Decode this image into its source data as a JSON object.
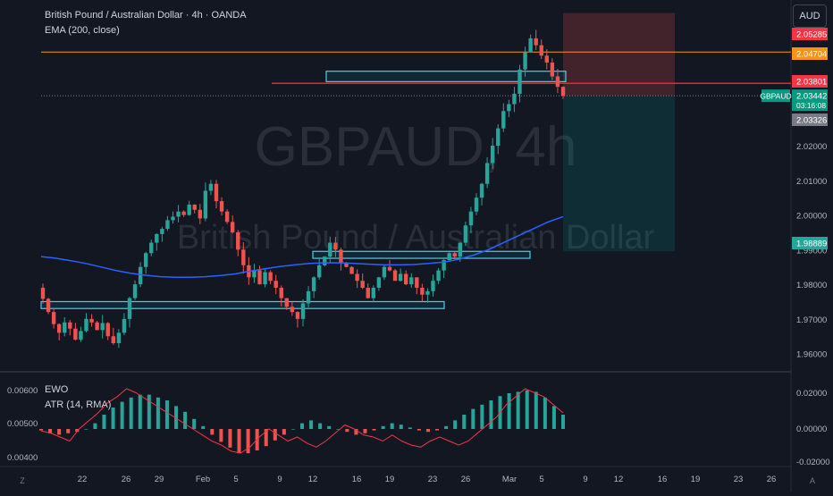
{
  "header": {
    "title": "British Pound / Australian Dollar · 4h · OANDA",
    "indicator": "EMA (200, close)"
  },
  "watermark": {
    "symbol": "GBPAUD, 4h",
    "name": "British Pound / Australian Dollar"
  },
  "currency_button": "AUD",
  "corner_left": "Z",
  "corner_right": "A",
  "sub_legend": [
    "EWO",
    "ATR (14, RMA)"
  ],
  "colors": {
    "up": "#26a69a",
    "down": "#ef5350",
    "ema": "#2962ff",
    "orange_line": "#f7931a",
    "red_line": "#ff1f1f",
    "zone": "#4dd0e1"
  },
  "chart_data": [
    {
      "type": "candlestick",
      "symbol": "GBPAUD",
      "timeframe": "4h",
      "y_ticks": [
        "1.96000",
        "1.97000",
        "1.98000",
        "1.99000",
        "2.00000",
        "2.01000",
        "2.02000"
      ],
      "ylim": [
        1.955,
        2.06
      ],
      "x_ticks": [
        "22",
        "26",
        "29",
        "Feb",
        "5",
        "9",
        "12",
        "16",
        "19",
        "23",
        "26",
        "Mar",
        "5",
        "9",
        "12",
        "16",
        "19",
        "23",
        "26"
      ],
      "closes": [
        1.9758,
        1.972,
        1.9685,
        1.966,
        1.969,
        1.9672,
        1.964,
        1.9665,
        1.97,
        1.969,
        1.9668,
        1.9688,
        1.965,
        1.963,
        1.966,
        1.97,
        1.976,
        1.98,
        1.985,
        1.989,
        1.992,
        1.9945,
        1.996,
        1.9985,
        1.9995,
        2.001,
        2.0,
        2.003,
        2.0015,
        1.999,
        2.007,
        2.009,
        2.004,
        2.001,
        1.998,
        1.995,
        1.99,
        1.9855,
        1.982,
        1.984,
        1.98,
        1.9835,
        1.981,
        1.979,
        1.976,
        1.9735,
        1.972,
        1.97,
        1.9745,
        1.978,
        1.982,
        1.9855,
        1.988,
        1.992,
        1.99,
        1.986,
        1.985,
        1.983,
        1.981,
        1.979,
        1.976,
        1.979,
        1.982,
        1.985,
        1.984,
        1.981,
        1.983,
        1.98,
        1.982,
        1.979,
        1.977,
        1.978,
        1.981,
        1.984,
        1.987,
        1.989,
        1.988,
        1.992,
        1.997,
        2.001,
        2.005,
        2.009,
        2.015,
        2.02,
        2.025,
        2.03,
        2.032,
        2.035,
        2.042,
        2.047,
        2.051,
        2.049,
        2.046,
        2.044,
        2.04,
        2.037,
        2.0344
      ],
      "ema_series": [
        1.988,
        1.9875,
        1.9868,
        1.986,
        1.985,
        1.984,
        1.9832,
        1.9826,
        1.9822,
        1.982,
        1.982,
        1.9822,
        1.9825,
        1.983,
        1.9838,
        1.9845,
        1.9851,
        1.9856,
        1.986,
        1.9862,
        1.9862,
        1.986,
        1.9858,
        1.9856,
        1.9856,
        1.9857,
        1.986,
        1.9864,
        1.9872,
        1.9884,
        1.99,
        1.992,
        1.994,
        1.996,
        1.998,
        1.9995
      ],
      "price_levels": [
        {
          "label": "2.05285",
          "value": 2.05285,
          "color": "#f23645"
        },
        {
          "label": "2.04704",
          "value": 2.04704,
          "color": "#f7931a"
        },
        {
          "label": "2.03801",
          "value": 2.03801,
          "color": "#f23645"
        },
        {
          "label": "2.03442",
          "value": 2.03442,
          "color": "#089981",
          "symbol": "GBPAUD",
          "countdown": "03:16:08"
        },
        {
          "label": "2.03326",
          "value": 2.03326,
          "color": "#787b86"
        },
        {
          "label": "1.98889",
          "value": 1.98889,
          "color": "#26a69a"
        }
      ],
      "horizontal_lines": [
        {
          "value": 2.04704,
          "color": "#f7931a"
        },
        {
          "value": 2.03801,
          "color": "#ff1f1f"
        }
      ],
      "zones": [
        {
          "x": [
            "Feb 14",
            "Mar 10"
          ],
          "y": [
            2.0385,
            2.0415
          ]
        },
        {
          "x": [
            "Feb 12",
            "Feb 26"
          ],
          "y": [
            1.9875,
            1.9895
          ]
        },
        {
          "x": [
            "Jan 19",
            "Feb 22"
          ],
          "y": [
            1.973,
            1.975
          ]
        }
      ],
      "position": {
        "entry": 2.0344,
        "stop": 2.0583,
        "target": 1.9895
      }
    },
    {
      "type": "histogram+line",
      "series": [
        {
          "name": "EWO"
        },
        {
          "name": "ATR (14, RMA)"
        }
      ],
      "y_ticks_left": [
        "0.00600",
        "0.00500",
        "0.00400"
      ],
      "y_ticks_right": [
        "0.02000",
        "0.00000",
        "-0.02000"
      ],
      "ewo": [
        -0.001,
        -0.003,
        -0.004,
        -0.003,
        -0.002,
        0.0,
        0.004,
        0.01,
        0.015,
        0.019,
        0.022,
        0.024,
        0.024,
        0.022,
        0.02,
        0.016,
        0.012,
        0.007,
        0.002,
        -0.004,
        -0.009,
        -0.013,
        -0.017,
        -0.017,
        -0.015,
        -0.012,
        -0.008,
        -0.004,
        0.0,
        0.004,
        0.006,
        0.004,
        0.002,
        0.0,
        -0.002,
        -0.004,
        -0.003,
        -0.001,
        0.002,
        0.004,
        0.003,
        0.001,
        -0.001,
        -0.002,
        -0.001,
        0.002,
        0.006,
        0.01,
        0.014,
        0.017,
        0.02,
        0.023,
        0.025,
        0.026,
        0.027,
        0.026,
        0.022,
        0.016,
        0.01
      ],
      "atr": [
        0.00495,
        0.0049,
        0.0048,
        0.0047,
        0.005,
        0.0052,
        0.0054,
        0.00565,
        0.0058,
        0.006,
        0.0059,
        0.00575,
        0.0056,
        0.00545,
        0.0053,
        0.00515,
        0.005,
        0.00485,
        0.0047,
        0.0046,
        0.00445,
        0.0044,
        0.00455,
        0.0048,
        0.005,
        0.00485,
        0.0047,
        0.0048,
        0.00465,
        0.00455,
        0.0047,
        0.0049,
        0.0051,
        0.005,
        0.00485,
        0.0048,
        0.0047,
        0.00485,
        0.0047,
        0.0046,
        0.00455,
        0.0047,
        0.0048,
        0.0047,
        0.0046,
        0.0047,
        0.0049,
        0.0051,
        0.0053,
        0.0056,
        0.0058,
        0.006,
        0.0059,
        0.0058,
        0.0056,
        0.0054
      ]
    }
  ]
}
